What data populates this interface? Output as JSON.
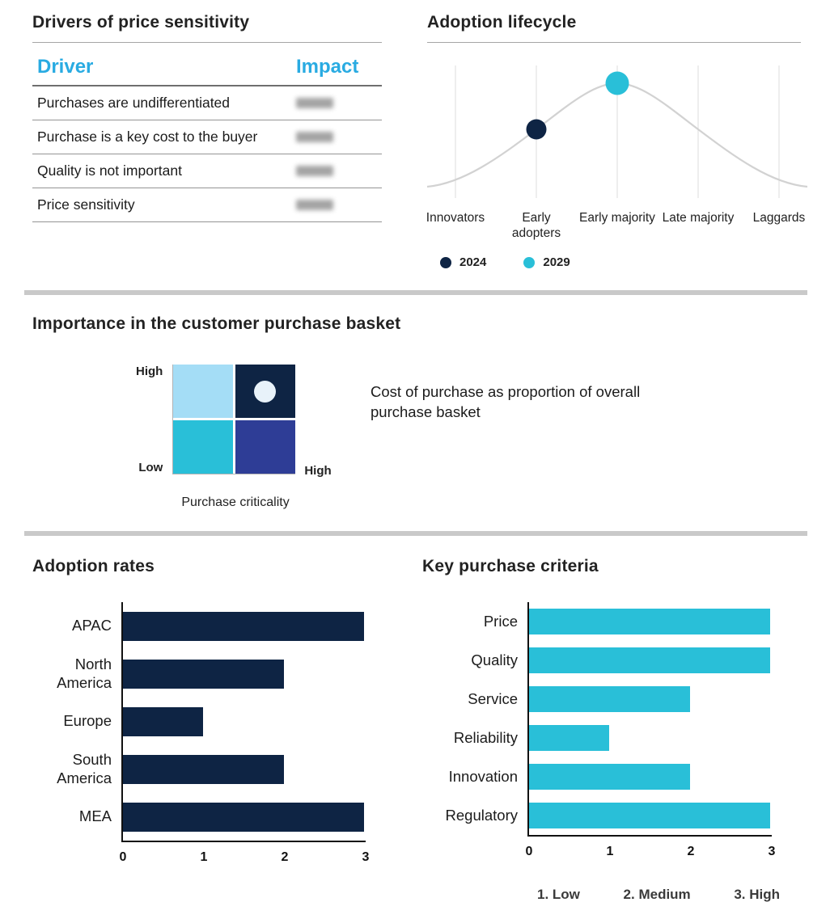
{
  "colors": {
    "navy": "#0e2444",
    "cyan": "#29bfd8",
    "header_cyan": "#29abe2",
    "light_blue": "#a4ddf6",
    "indigo": "#2e3d96",
    "quad_dot": "#e8f2fa",
    "curve": "#d2d2d2",
    "gridline": "#dddddd",
    "divider": "#c9c9c9"
  },
  "sections": {
    "drivers": {
      "title": "Drivers of price sensitivity",
      "table": {
        "headers": [
          "Driver",
          "Impact"
        ],
        "rows": [
          "Purchases are undifferentiated",
          "Purchase is a key cost to the buyer",
          "Quality is not important",
          "Price sensitivity"
        ],
        "impact_values": "blurred-illegible"
      }
    },
    "lifecycle": {
      "title": "Adoption lifecycle"
    },
    "basket": {
      "title": "Importance in the customer purchase basket",
      "note": "Cost of purchase as proportion of overall purchase basket"
    },
    "adoption": {
      "title": "Adoption rates"
    },
    "criteria": {
      "title": "Key purchase criteria"
    }
  },
  "chart_data": [
    {
      "id": "lifecycle",
      "type": "line",
      "shape": "bell-curve",
      "title": "Adoption lifecycle",
      "categories": [
        "Innovators",
        "Early adopters",
        "Early majority",
        "Late majority",
        "Laggards"
      ],
      "grid": "vertical-gridlines",
      "points": [
        {
          "label": "2024",
          "category": "Early adopters",
          "position": "mid-rise",
          "color_key": "navy"
        },
        {
          "label": "2029",
          "category": "Early majority",
          "position": "peak",
          "color_key": "cyan"
        }
      ],
      "legend": [
        {
          "label": "2024",
          "color_key": "navy"
        },
        {
          "label": "2029",
          "color_key": "cyan"
        }
      ]
    },
    {
      "id": "basket_matrix",
      "type": "heatmap",
      "subtype": "2x2-quadrant",
      "title": "Importance in the customer purchase basket",
      "x_axis_title": "Purchase criticality",
      "y_high_label": "High",
      "y_low_label": "Low",
      "x_high_label": "High",
      "quadrants": {
        "top_left": "light_blue",
        "top_right": "navy",
        "bottom_left": "cyan",
        "bottom_right": "indigo"
      },
      "marker": {
        "quadrant": "top_right",
        "color_key": "quad_dot"
      }
    },
    {
      "id": "adoption_rates",
      "type": "bar",
      "orientation": "horizontal",
      "title": "Adoption rates",
      "categories": [
        "APAC",
        "North America",
        "Europe",
        "South America",
        "MEA"
      ],
      "values": [
        3,
        2,
        1,
        2,
        3
      ],
      "xlim": [
        0,
        3
      ],
      "ticks": [
        0,
        1,
        2,
        3
      ],
      "bar_color_key": "navy"
    },
    {
      "id": "purchase_criteria",
      "type": "bar",
      "orientation": "horizontal",
      "title": "Key purchase criteria",
      "categories": [
        "Price",
        "Quality",
        "Service",
        "Reliability",
        "Innovation",
        "Regulatory"
      ],
      "values": [
        3,
        3,
        2,
        1,
        2,
        3
      ],
      "xlim": [
        0,
        3
      ],
      "ticks": [
        0,
        1,
        2,
        3
      ],
      "bar_color_key": "cyan",
      "scale_legend": [
        "1. Low",
        "2. Medium",
        "3. High"
      ]
    }
  ]
}
